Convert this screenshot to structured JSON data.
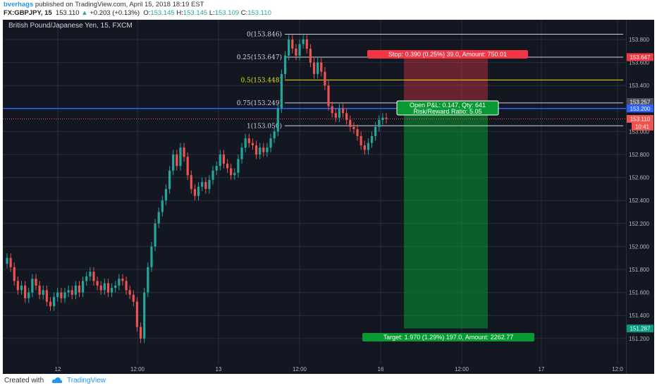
{
  "header": {
    "user": "bverhags",
    "published": " published on TradingView.com, April 15, 2018 18:19 EST",
    "symbol": "FX:GBPJPY, 15",
    "last": "153.110",
    "change": "+0.203 (+0.13%)",
    "open_label": "O:",
    "open": "153.145",
    "high_label": "H:",
    "high": "153.145",
    "low_label": "L:",
    "low": "153.109",
    "close_label": "C:",
    "close": "153.110"
  },
  "chart_title": "British Pound/Japanese Yen, 15, FXCM",
  "footer": {
    "created": "Created with",
    "brand": "TradingView"
  },
  "colors": {
    "bg": "#131722",
    "up": "#26a69a",
    "down": "#ef5350",
    "grid": "#2a2e39",
    "stop": "#f23645",
    "target": "#089981"
  },
  "chart_data": {
    "type": "candlestick",
    "yticks": [
      "153.800",
      "153.600",
      "153.400",
      "153.200",
      "153.000",
      "152.800",
      "152.600",
      "152.400",
      "152.200",
      "152.000",
      "151.800",
      "151.600",
      "151.400",
      "151.200"
    ],
    "xticks": [
      "12",
      "12:00",
      "13",
      "12:00",
      "16",
      "12:00",
      "17",
      "12:0"
    ],
    "ylim": [
      151.05,
      153.92
    ],
    "fib": [
      {
        "label": "0(153.846)",
        "value": 153.846,
        "color": "#d1d4dc"
      },
      {
        "label": "0.25(153.647)",
        "value": 153.647,
        "color": "#d1d4dc"
      },
      {
        "label": "0.5(153.448)",
        "value": 153.448,
        "color": "#e6e600"
      },
      {
        "label": "0.75(153.249)",
        "value": 153.249,
        "color": "#d1d4dc"
      },
      {
        "label": "1(153.050)",
        "value": 153.05,
        "color": "#d1d4dc"
      }
    ],
    "horizontal_line": {
      "value": 153.2,
      "label": "153.200"
    },
    "price_line": {
      "value": 153.11,
      "label": "153.110",
      "timer": "10:41"
    },
    "position": {
      "stop_label": "Stop: 0.390 (0.25%) 39.0, Amount: 750.01",
      "pnl_label": "Open P&L: 0.147, Qty: 641",
      "rr_label": "Risk/Reward Ratio: 5.05",
      "target_label": "Target: 1.970 (1.29%) 197.0, Amount: 2262.77",
      "entry": 153.257,
      "stop": 153.647,
      "target": 151.287
    },
    "axis_badges": [
      {
        "label": "153.647",
        "value": 153.647,
        "color": "#f23645"
      },
      {
        "label": "153.257",
        "value": 153.257,
        "color": "#4a4e5a"
      },
      {
        "label": "153.200",
        "value": 153.2,
        "color": "#2962ff"
      },
      {
        "label": "153.110",
        "value": 153.11,
        "color": "#ef5350"
      },
      {
        "label": "151.287",
        "value": 151.287,
        "color": "#089981"
      }
    ],
    "series_close": [
      151.9,
      151.82,
      151.7,
      151.62,
      151.66,
      151.55,
      151.6,
      151.72,
      151.66,
      151.58,
      151.62,
      151.52,
      151.48,
      151.56,
      151.6,
      151.55,
      151.6,
      151.62,
      151.58,
      151.66,
      151.6,
      151.7,
      151.74,
      151.78,
      151.7,
      151.66,
      151.62,
      151.68,
      151.6,
      151.64,
      151.66,
      151.72,
      151.7,
      151.62,
      151.58,
      151.52,
      151.3,
      151.2,
      151.6,
      151.82,
      152.0,
      152.2,
      152.3,
      152.4,
      152.5,
      152.66,
      152.8,
      152.7,
      152.86,
      152.78,
      152.62,
      152.5,
      152.44,
      152.52,
      152.56,
      152.5,
      152.58,
      152.66,
      152.7,
      152.8,
      152.72,
      152.68,
      152.62,
      152.64,
      152.76,
      152.86,
      152.94,
      152.9,
      152.88,
      152.8,
      152.86,
      152.82,
      152.86,
      152.94,
      153.0,
      153.2,
      153.5,
      153.66,
      153.8,
      153.72,
      153.66,
      153.76,
      153.8,
      153.72,
      153.6,
      153.5,
      153.6,
      153.52,
      153.4,
      153.22,
      153.16,
      153.12,
      153.2,
      153.16,
      153.1,
      153.04,
      153.02,
      152.96,
      152.88,
      152.84,
      152.9,
      152.96,
      153.04,
      153.1,
      153.12,
      153.11
    ]
  }
}
